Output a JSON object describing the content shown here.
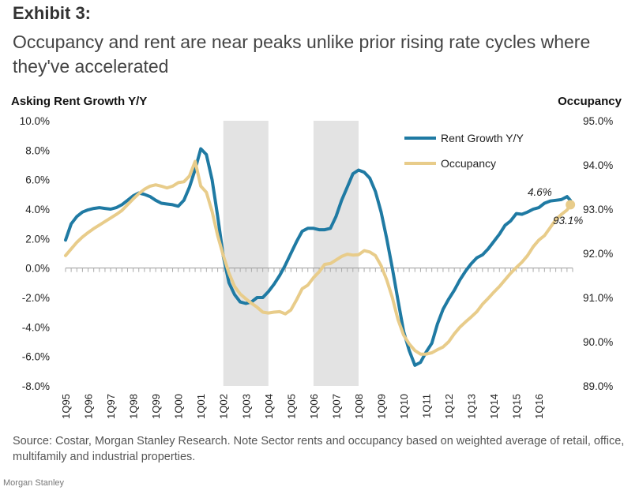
{
  "header": {
    "exhibit": "Exhibit 3:",
    "title": "Occupancy and rent are near peaks unlike prior rising rate cycles where they've accelerated"
  },
  "chart_data": {
    "type": "line",
    "y_left_label": "Asking Rent Growth Y/Y",
    "y_right_label": "Occupancy",
    "y_left_range": [
      -8,
      10
    ],
    "y_left_ticks": [
      "10.0%",
      "8.0%",
      "6.0%",
      "4.0%",
      "2.0%",
      "0.0%",
      "-2.0%",
      "-4.0%",
      "-6.0%",
      "-8.0%"
    ],
    "y_right_range": [
      89,
      95
    ],
    "y_right_ticks": [
      "95.0%",
      "94.0%",
      "93.0%",
      "92.0%",
      "91.0%",
      "90.0%",
      "89.0%"
    ],
    "x_categories": [
      "1Q95",
      "1Q96",
      "1Q97",
      "1Q98",
      "1Q99",
      "1Q00",
      "1Q01",
      "1Q02",
      "1Q03",
      "1Q04",
      "1Q05",
      "1Q06",
      "1Q07",
      "1Q08",
      "1Q09",
      "1Q10",
      "1Q11",
      "1Q12",
      "1Q13",
      "1Q14",
      "1Q15",
      "1Q16"
    ],
    "shaded_periods": [
      [
        2002,
        2004
      ],
      [
        2006,
        2008
      ]
    ],
    "legend_position": "top-right",
    "series": [
      {
        "name": "Rent Growth Y/Y",
        "axis": "left",
        "color": "#1f7aa3",
        "points": [
          [
            1995.0,
            1.9
          ],
          [
            1995.25,
            3.0
          ],
          [
            1995.5,
            3.5
          ],
          [
            1995.75,
            3.8
          ],
          [
            1996.0,
            3.95
          ],
          [
            1996.25,
            4.05
          ],
          [
            1996.5,
            4.1
          ],
          [
            1996.75,
            4.05
          ],
          [
            1997.0,
            4.0
          ],
          [
            1997.25,
            4.1
          ],
          [
            1997.5,
            4.3
          ],
          [
            1997.75,
            4.6
          ],
          [
            1998.0,
            4.9
          ],
          [
            1998.25,
            5.1
          ],
          [
            1998.5,
            5.0
          ],
          [
            1998.75,
            4.85
          ],
          [
            1999.0,
            4.6
          ],
          [
            1999.25,
            4.4
          ],
          [
            1999.5,
            4.35
          ],
          [
            1999.75,
            4.3
          ],
          [
            2000.0,
            4.2
          ],
          [
            2000.25,
            4.6
          ],
          [
            2000.5,
            5.5
          ],
          [
            2000.75,
            6.7
          ],
          [
            2001.0,
            8.1
          ],
          [
            2001.25,
            7.7
          ],
          [
            2001.5,
            6.0
          ],
          [
            2001.75,
            3.5
          ],
          [
            2002.0,
            0.8
          ],
          [
            2002.25,
            -1.0
          ],
          [
            2002.5,
            -1.8
          ],
          [
            2002.75,
            -2.3
          ],
          [
            2003.0,
            -2.4
          ],
          [
            2003.25,
            -2.3
          ],
          [
            2003.5,
            -2.0
          ],
          [
            2003.75,
            -2.0
          ],
          [
            2004.0,
            -1.6
          ],
          [
            2004.25,
            -1.1
          ],
          [
            2004.5,
            -0.5
          ],
          [
            2004.75,
            0.2
          ],
          [
            2005.0,
            1.0
          ],
          [
            2005.25,
            1.8
          ],
          [
            2005.5,
            2.5
          ],
          [
            2005.75,
            2.7
          ],
          [
            2006.0,
            2.7
          ],
          [
            2006.25,
            2.6
          ],
          [
            2006.5,
            2.6
          ],
          [
            2006.75,
            2.7
          ],
          [
            2007.0,
            3.5
          ],
          [
            2007.25,
            4.6
          ],
          [
            2007.5,
            5.5
          ],
          [
            2007.75,
            6.4
          ],
          [
            2008.0,
            6.65
          ],
          [
            2008.25,
            6.5
          ],
          [
            2008.5,
            6.1
          ],
          [
            2008.75,
            5.2
          ],
          [
            2009.0,
            3.8
          ],
          [
            2009.25,
            2.0
          ],
          [
            2009.5,
            0.0
          ],
          [
            2009.75,
            -2.2
          ],
          [
            2010.0,
            -4.3
          ],
          [
            2010.25,
            -5.6
          ],
          [
            2010.5,
            -6.6
          ],
          [
            2010.75,
            -6.4
          ],
          [
            2011.0,
            -5.7
          ],
          [
            2011.25,
            -5.1
          ],
          [
            2011.5,
            -3.8
          ],
          [
            2011.75,
            -2.8
          ],
          [
            2012.0,
            -2.1
          ],
          [
            2012.25,
            -1.5
          ],
          [
            2012.5,
            -0.8
          ],
          [
            2012.75,
            -0.2
          ],
          [
            2013.0,
            0.3
          ],
          [
            2013.25,
            0.7
          ],
          [
            2013.5,
            0.9
          ],
          [
            2013.75,
            1.3
          ],
          [
            2014.0,
            1.8
          ],
          [
            2014.25,
            2.3
          ],
          [
            2014.5,
            2.9
          ],
          [
            2014.75,
            3.2
          ],
          [
            2015.0,
            3.7
          ],
          [
            2015.25,
            3.65
          ],
          [
            2015.5,
            3.8
          ],
          [
            2015.75,
            4.0
          ],
          [
            2016.0,
            4.1
          ],
          [
            2016.25,
            4.4
          ],
          [
            2016.5,
            4.55
          ],
          [
            2016.75,
            4.6
          ],
          [
            2017.0,
            4.65
          ],
          [
            2017.25,
            4.85
          ],
          [
            2017.4,
            4.6
          ]
        ]
      },
      {
        "name": "Occupancy",
        "axis": "right",
        "color": "#e8cc8a",
        "points": [
          [
            1995.0,
            91.95
          ],
          [
            1995.25,
            92.1
          ],
          [
            1995.5,
            92.25
          ],
          [
            1995.75,
            92.37
          ],
          [
            1996.0,
            92.47
          ],
          [
            1996.25,
            92.56
          ],
          [
            1996.5,
            92.64
          ],
          [
            1996.75,
            92.72
          ],
          [
            1997.0,
            92.8
          ],
          [
            1997.25,
            92.88
          ],
          [
            1997.5,
            92.97
          ],
          [
            1997.75,
            93.1
          ],
          [
            1998.0,
            93.23
          ],
          [
            1998.25,
            93.35
          ],
          [
            1998.5,
            93.45
          ],
          [
            1998.75,
            93.52
          ],
          [
            1999.0,
            93.55
          ],
          [
            1999.25,
            93.52
          ],
          [
            1999.5,
            93.48
          ],
          [
            1999.75,
            93.52
          ],
          [
            2000.0,
            93.6
          ],
          [
            2000.25,
            93.62
          ],
          [
            2000.5,
            93.75
          ],
          [
            2000.75,
            94.08
          ],
          [
            2001.0,
            93.52
          ],
          [
            2001.25,
            93.38
          ],
          [
            2001.5,
            92.95
          ],
          [
            2001.75,
            92.4
          ],
          [
            2002.0,
            91.95
          ],
          [
            2002.25,
            91.55
          ],
          [
            2002.5,
            91.25
          ],
          [
            2002.75,
            91.08
          ],
          [
            2003.0,
            90.97
          ],
          [
            2003.25,
            90.87
          ],
          [
            2003.5,
            90.78
          ],
          [
            2003.75,
            90.67
          ],
          [
            2004.0,
            90.65
          ],
          [
            2004.25,
            90.67
          ],
          [
            2004.5,
            90.68
          ],
          [
            2004.75,
            90.63
          ],
          [
            2005.0,
            90.72
          ],
          [
            2005.25,
            90.95
          ],
          [
            2005.5,
            91.2
          ],
          [
            2005.75,
            91.28
          ],
          [
            2006.0,
            91.45
          ],
          [
            2006.25,
            91.58
          ],
          [
            2006.5,
            91.75
          ],
          [
            2006.75,
            91.77
          ],
          [
            2007.0,
            91.85
          ],
          [
            2007.25,
            91.93
          ],
          [
            2007.5,
            91.98
          ],
          [
            2007.75,
            91.96
          ],
          [
            2008.0,
            91.97
          ],
          [
            2008.25,
            92.06
          ],
          [
            2008.5,
            92.03
          ],
          [
            2008.75,
            91.95
          ],
          [
            2009.0,
            91.72
          ],
          [
            2009.25,
            91.4
          ],
          [
            2009.5,
            91.0
          ],
          [
            2009.75,
            90.5
          ],
          [
            2010.0,
            90.15
          ],
          [
            2010.25,
            89.95
          ],
          [
            2010.5,
            89.8
          ],
          [
            2010.75,
            89.72
          ],
          [
            2011.0,
            89.72
          ],
          [
            2011.25,
            89.75
          ],
          [
            2011.5,
            89.82
          ],
          [
            2011.75,
            89.88
          ],
          [
            2012.0,
            90.0
          ],
          [
            2012.25,
            90.18
          ],
          [
            2012.5,
            90.33
          ],
          [
            2012.75,
            90.45
          ],
          [
            2013.0,
            90.56
          ],
          [
            2013.25,
            90.68
          ],
          [
            2013.5,
            90.85
          ],
          [
            2013.75,
            90.98
          ],
          [
            2014.0,
            91.12
          ],
          [
            2014.25,
            91.25
          ],
          [
            2014.5,
            91.4
          ],
          [
            2014.75,
            91.55
          ],
          [
            2015.0,
            91.68
          ],
          [
            2015.25,
            91.8
          ],
          [
            2015.5,
            91.95
          ],
          [
            2015.75,
            92.15
          ],
          [
            2016.0,
            92.3
          ],
          [
            2016.25,
            92.4
          ],
          [
            2016.5,
            92.58
          ],
          [
            2016.75,
            92.76
          ],
          [
            2017.0,
            92.88
          ],
          [
            2017.25,
            92.98
          ],
          [
            2017.4,
            93.1
          ]
        ]
      }
    ],
    "annotations": [
      {
        "text": "4.6%",
        "series": "Rent Growth Y/Y"
      },
      {
        "text": "93.1%",
        "series": "Occupancy"
      }
    ]
  },
  "source": "Source: Costar, Morgan Stanley Research. Note Sector rents and occupancy based on weighted average of retail, office, multifamily and industrial properties.",
  "footer": "Morgan Stanley"
}
